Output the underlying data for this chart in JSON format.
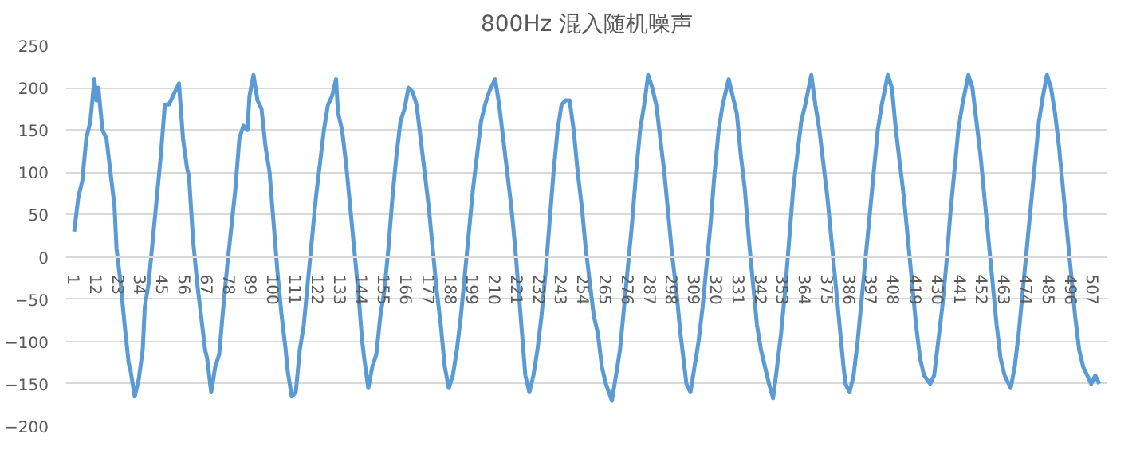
{
  "chart_data": {
    "type": "line",
    "title": "800Hz 混入随机噪声",
    "x": [
      1,
      3,
      5,
      7,
      9,
      11,
      12,
      13,
      15,
      17,
      19,
      21,
      22,
      24,
      26,
      28,
      29,
      31,
      33,
      35,
      36,
      38,
      40,
      42,
      44,
      46,
      48,
      50,
      53,
      55,
      57,
      58,
      60,
      62,
      64,
      66,
      67,
      69,
      71,
      73,
      75,
      77,
      79,
      81,
      83,
      85,
      87,
      88,
      90,
      92,
      94,
      96,
      98,
      100,
      102,
      104,
      106,
      107,
      109,
      111,
      113,
      115,
      117,
      119,
      121,
      123,
      125,
      127,
      129,
      131,
      132,
      134,
      136,
      138,
      140,
      142,
      144,
      145,
      147,
      149,
      151,
      153,
      155,
      157,
      159,
      161,
      163,
      165,
      167,
      169,
      171,
      173,
      175,
      177,
      179,
      181,
      183,
      185,
      187,
      189,
      191,
      193,
      195,
      197,
      199,
      201,
      203,
      205,
      207,
      210,
      212,
      214,
      216,
      218,
      220,
      222,
      224,
      225,
      227,
      229,
      231,
      233,
      235,
      237,
      239,
      241,
      243,
      245,
      247,
      249,
      251,
      253,
      255,
      257,
      259,
      261,
      263,
      265,
      268,
      270,
      272,
      274,
      276,
      278,
      280,
      282,
      284,
      286,
      288,
      290,
      292,
      294,
      296,
      298,
      300,
      302,
      304,
      305,
      307,
      309,
      311,
      313,
      315,
      317,
      319,
      321,
      323,
      325,
      326,
      328,
      330,
      332,
      334,
      336,
      338,
      340,
      342,
      344,
      346,
      348,
      350,
      352,
      354,
      356,
      358,
      360,
      362,
      364,
      367,
      369,
      371,
      373,
      375,
      377,
      379,
      381,
      383,
      384,
      386,
      388,
      390,
      392,
      394,
      396,
      398,
      400,
      402,
      405,
      407,
      409,
      411,
      413,
      415,
      417,
      419,
      421,
      423,
      426,
      428,
      430,
      432,
      434,
      436,
      438,
      440,
      442,
      445,
      447,
      449,
      451,
      453,
      455,
      457,
      459,
      461,
      463,
      466,
      468,
      470,
      472,
      474,
      476,
      478,
      480,
      482,
      484,
      486,
      488,
      490,
      492,
      494,
      496,
      498,
      500,
      502,
      504,
      506,
      508,
      510
    ],
    "series": [
      {
        "color": "#5b9bd5",
        "values": [
          30,
          70,
          90,
          140,
          160,
          210,
          185,
          200,
          150,
          140,
          100,
          60,
          10,
          -30,
          -80,
          -125,
          -135,
          -165,
          -145,
          -110,
          -60,
          -30,
          20,
          70,
          120,
          180,
          180,
          190,
          205,
          140,
          105,
          95,
          20,
          -30,
          -70,
          -110,
          -120,
          -160,
          -130,
          -115,
          -60,
          -10,
          35,
          80,
          140,
          155,
          150,
          190,
          215,
          185,
          175,
          130,
          100,
          40,
          -20,
          -70,
          -110,
          -135,
          -165,
          -160,
          -110,
          -80,
          -30,
          20,
          70,
          110,
          150,
          180,
          190,
          210,
          170,
          150,
          110,
          60,
          10,
          -40,
          -100,
          -120,
          -155,
          -130,
          -115,
          -70,
          -40,
          10,
          70,
          120,
          160,
          175,
          200,
          195,
          180,
          140,
          100,
          60,
          10,
          -40,
          -80,
          -130,
          -155,
          -140,
          -110,
          -70,
          -20,
          30,
          80,
          120,
          160,
          180,
          195,
          210,
          180,
          140,
          100,
          60,
          10,
          -50,
          -110,
          -140,
          -160,
          -140,
          -110,
          -70,
          -20,
          40,
          100,
          150,
          180,
          185,
          185,
          150,
          100,
          60,
          10,
          -30,
          -70,
          -90,
          -130,
          -150,
          -170,
          -140,
          -110,
          -60,
          -10,
          40,
          100,
          150,
          180,
          215,
          200,
          180,
          140,
          100,
          50,
          0,
          -40,
          -90,
          -130,
          -150,
          -160,
          -130,
          -100,
          -60,
          -10,
          40,
          100,
          150,
          180,
          200,
          210,
          190,
          170,
          120,
          80,
          20,
          -30,
          -80,
          -110,
          -130,
          -150,
          -167,
          -130,
          -90,
          -40,
          20,
          80,
          120,
          160,
          180,
          215,
          180,
          150,
          110,
          70,
          20,
          -30,
          -80,
          -130,
          -150,
          -160,
          -140,
          -100,
          -50,
          0,
          50,
          100,
          150,
          180,
          215,
          200,
          150,
          110,
          70,
          20,
          -30,
          -80,
          -120,
          -140,
          -150,
          -140,
          -100,
          -60,
          -10,
          50,
          100,
          150,
          180,
          215,
          200,
          160,
          120,
          70,
          20,
          -30,
          -80,
          -120,
          -140,
          -155,
          -130,
          -90,
          -40,
          10,
          60,
          110,
          160,
          190,
          215,
          200,
          170,
          130,
          80,
          30,
          -20,
          -70,
          -110,
          -130,
          -140,
          -150,
          -140,
          -150
        ]
      }
    ],
    "xlim": [
      -3,
      514
    ],
    "xticks": [
      1,
      12,
      23,
      34,
      45,
      56,
      67,
      78,
      89,
      100,
      111,
      122,
      133,
      144,
      155,
      166,
      177,
      188,
      199,
      210,
      221,
      232,
      243,
      254,
      265,
      276,
      287,
      298,
      309,
      320,
      331,
      342,
      353,
      364,
      375,
      386,
      397,
      408,
      419,
      430,
      441,
      452,
      463,
      474,
      485,
      496,
      507
    ],
    "ylim": [
      -200,
      250
    ],
    "yticks": [
      -200,
      -150,
      -100,
      -50,
      0,
      50,
      100,
      150,
      200,
      250
    ],
    "grid": "y"
  }
}
